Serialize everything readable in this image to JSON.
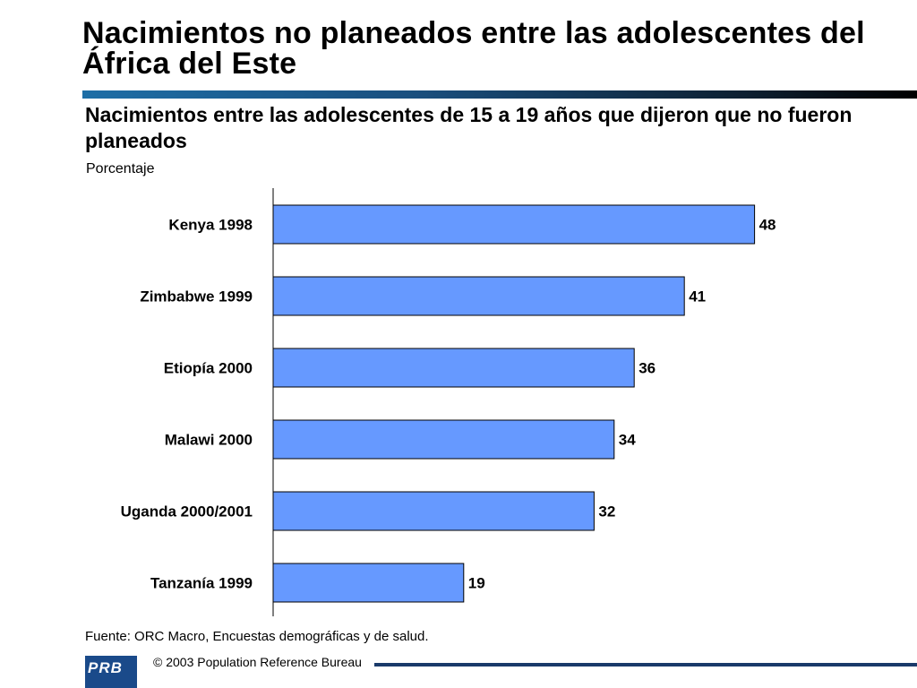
{
  "slide": {
    "title": "Nacimientos no planeados entre las adolescentes del África del Este",
    "source": "Fuente: ORC Macro, Encuestas demográficas y de salud.",
    "copyright": "© 2003 Population Reference Bureau",
    "logo": "PRB"
  },
  "chart_data": {
    "type": "bar",
    "orientation": "horizontal",
    "title": "Nacimientos entre las adolescentes de 15 a 19 años que dijeron que no fueron planeados",
    "ylabel": "Porcentaje",
    "xlim": [
      0,
      50
    ],
    "categories": [
      "Kenya 1998",
      "Zimbabwe 1999",
      "Etiopía 2000",
      "Malawi 2000",
      "Uganda 2000/2001",
      "Tanzanía 1999"
    ],
    "values": [
      48,
      41,
      36,
      34,
      32,
      19
    ],
    "bar_color": "#6699ff",
    "data_labels": true,
    "grid": false
  }
}
